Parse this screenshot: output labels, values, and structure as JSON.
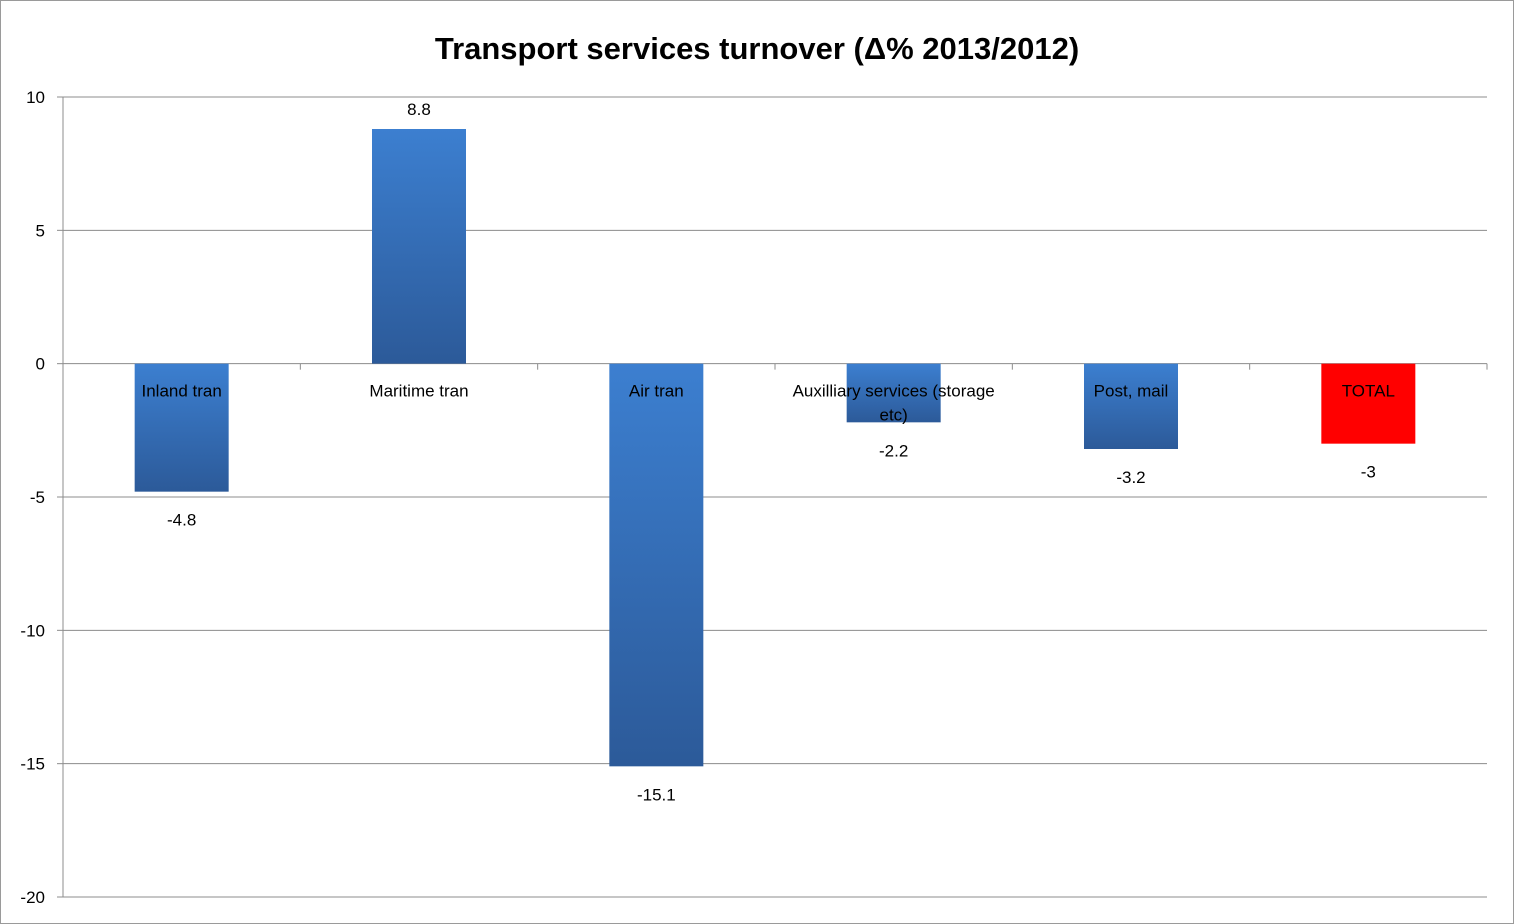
{
  "chart_data": {
    "type": "bar",
    "title": "Transport services turnover (Δ% 2013/2012)",
    "xlabel": "",
    "ylabel": "",
    "categories": [
      "Inland tran",
      "Maritime tran",
      "Air tran",
      "Auxilliary services (storage etc)",
      "Post, mail",
      "TOTAL"
    ],
    "category_label_lines": [
      [
        "Inland tran"
      ],
      [
        "Maritime tran"
      ],
      [
        "Air tran"
      ],
      [
        "Auxilliary services (storage",
        "etc)"
      ],
      [
        "Post, mail"
      ],
      [
        "TOTAL"
      ]
    ],
    "values": [
      -4.8,
      8.8,
      -15.1,
      -2.2,
      -3.2,
      -3
    ],
    "value_labels": [
      "-4.8",
      "8.8",
      "-15.1",
      "-2.2",
      "-3.2",
      "-3"
    ],
    "bar_colors": [
      "gradient-blue",
      "gradient-blue",
      "gradient-blue",
      "gradient-blue",
      "gradient-blue",
      "#ff0000"
    ],
    "ylim": [
      -20,
      10
    ],
    "yticks": [
      10,
      5,
      0,
      -5,
      -10,
      -15,
      -20
    ],
    "ytick_labels": [
      "10",
      "5",
      "0",
      "-5",
      "-10",
      "-15",
      "-20"
    ],
    "grid": true,
    "legend": "none"
  },
  "colors": {
    "bar_gradient_top": "#3c7fd0",
    "bar_gradient_bottom": "#2c5a99",
    "highlight_bar": "#ff0000",
    "gridline": "#8c8c8c",
    "axis": "#8c8c8c"
  }
}
